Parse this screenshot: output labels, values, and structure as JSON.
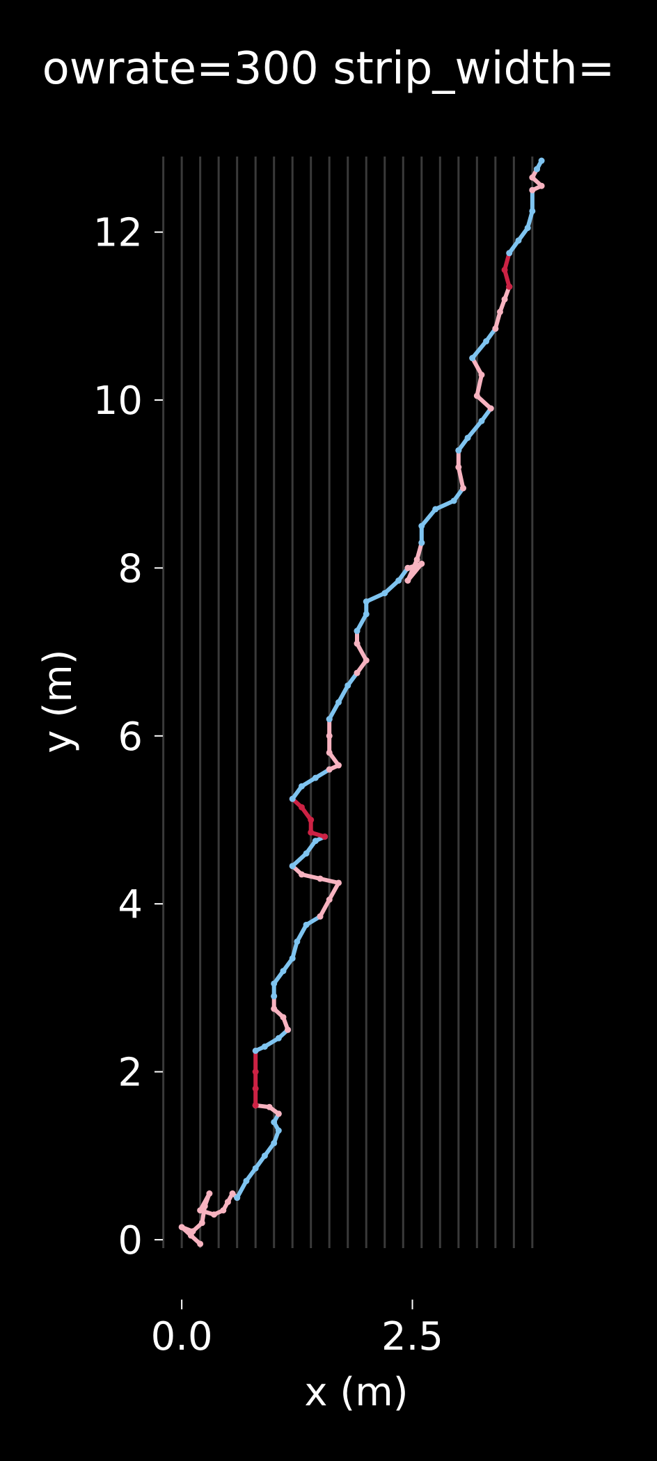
{
  "chart_data": {
    "type": "line",
    "title": "owrate=300 strip_width=",
    "xlabel": "x (m)",
    "ylabel": "y (m)",
    "xlim": [
      -0.25,
      4.05
    ],
    "ylim": [
      -0.1,
      12.9
    ],
    "xticks": [
      0.0,
      2.5
    ],
    "xtick_labels": [
      "0.0",
      "2.5"
    ],
    "yticks": [
      0,
      2,
      4,
      6,
      8,
      10,
      12
    ],
    "ytick_labels": [
      "0",
      "2",
      "4",
      "6",
      "8",
      "10",
      "12"
    ],
    "grid": false,
    "legend": "none",
    "strip_lines_x": [
      -0.2,
      0.0,
      0.2,
      0.4,
      0.6,
      0.8,
      1.0,
      1.2,
      1.4,
      1.6,
      1.8,
      2.0,
      2.2,
      2.4,
      2.6,
      2.8,
      3.0,
      3.2,
      3.4,
      3.6,
      3.8
    ],
    "colors": {
      "background": "#000000",
      "text": "#ffffff",
      "strip_line": "#3a3a3a",
      "path_blue": "#7fc4f0",
      "path_pink": "#f7b3c0",
      "path_red": "#cc2244"
    },
    "series": [
      {
        "color_key": "path_pink",
        "points": [
          [
            0.2,
            -0.05
          ],
          [
            0.1,
            0.05
          ],
          [
            0.0,
            0.15
          ],
          [
            0.12,
            0.1
          ],
          [
            0.22,
            0.2
          ],
          [
            0.25,
            0.4
          ],
          [
            0.3,
            0.55
          ],
          [
            0.2,
            0.35
          ],
          [
            0.35,
            0.3
          ],
          [
            0.45,
            0.35
          ],
          [
            0.5,
            0.45
          ],
          [
            0.55,
            0.55
          ],
          [
            0.6,
            0.5
          ]
        ]
      },
      {
        "color_key": "path_blue",
        "points": [
          [
            0.6,
            0.5
          ],
          [
            0.7,
            0.7
          ],
          [
            0.8,
            0.85
          ],
          [
            0.9,
            1.0
          ],
          [
            1.0,
            1.15
          ],
          [
            1.05,
            1.3
          ],
          [
            1.0,
            1.4
          ],
          [
            1.05,
            1.5
          ]
        ]
      },
      {
        "color_key": "path_pink",
        "points": [
          [
            1.05,
            1.5
          ],
          [
            0.95,
            1.58
          ],
          [
            0.8,
            1.6
          ]
        ]
      },
      {
        "color_key": "path_red",
        "points": [
          [
            0.8,
            1.6
          ],
          [
            0.8,
            1.8
          ],
          [
            0.8,
            2.0
          ],
          [
            0.8,
            2.25
          ]
        ]
      },
      {
        "color_key": "path_blue",
        "points": [
          [
            0.8,
            2.25
          ],
          [
            0.9,
            2.3
          ],
          [
            1.05,
            2.4
          ],
          [
            1.15,
            2.5
          ]
        ]
      },
      {
        "color_key": "path_pink",
        "points": [
          [
            1.15,
            2.5
          ],
          [
            1.1,
            2.65
          ],
          [
            1.0,
            2.75
          ],
          [
            1.0,
            2.9
          ]
        ]
      },
      {
        "color_key": "path_blue",
        "points": [
          [
            1.0,
            2.9
          ],
          [
            1.0,
            3.05
          ],
          [
            1.1,
            3.2
          ],
          [
            1.2,
            3.35
          ],
          [
            1.25,
            3.55
          ],
          [
            1.35,
            3.75
          ],
          [
            1.5,
            3.85
          ]
        ]
      },
      {
        "color_key": "path_pink",
        "points": [
          [
            1.5,
            3.85
          ],
          [
            1.6,
            4.05
          ],
          [
            1.7,
            4.25
          ],
          [
            1.5,
            4.3
          ],
          [
            1.3,
            4.35
          ],
          [
            1.2,
            4.45
          ]
        ]
      },
      {
        "color_key": "path_blue",
        "points": [
          [
            1.2,
            4.45
          ],
          [
            1.35,
            4.6
          ],
          [
            1.45,
            4.75
          ],
          [
            1.55,
            4.8
          ]
        ]
      },
      {
        "color_key": "path_red",
        "points": [
          [
            1.55,
            4.8
          ],
          [
            1.4,
            4.85
          ],
          [
            1.4,
            5.0
          ],
          [
            1.3,
            5.15
          ],
          [
            1.2,
            5.25
          ]
        ]
      },
      {
        "color_key": "path_blue",
        "points": [
          [
            1.2,
            5.25
          ],
          [
            1.3,
            5.4
          ],
          [
            1.45,
            5.5
          ],
          [
            1.6,
            5.6
          ]
        ]
      },
      {
        "color_key": "path_pink",
        "points": [
          [
            1.6,
            5.6
          ],
          [
            1.7,
            5.65
          ],
          [
            1.6,
            5.8
          ],
          [
            1.6,
            6.0
          ],
          [
            1.6,
            6.2
          ]
        ]
      },
      {
        "color_key": "path_blue",
        "points": [
          [
            1.6,
            6.2
          ],
          [
            1.7,
            6.4
          ],
          [
            1.8,
            6.6
          ],
          [
            1.9,
            6.75
          ]
        ]
      },
      {
        "color_key": "path_pink",
        "points": [
          [
            1.9,
            6.75
          ],
          [
            2.0,
            6.9
          ],
          [
            1.9,
            7.1
          ],
          [
            1.9,
            7.25
          ]
        ]
      },
      {
        "color_key": "path_blue",
        "points": [
          [
            1.9,
            7.25
          ],
          [
            2.0,
            7.45
          ],
          [
            2.0,
            7.6
          ],
          [
            2.2,
            7.7
          ],
          [
            2.35,
            7.85
          ],
          [
            2.45,
            8.0
          ]
        ]
      },
      {
        "color_key": "path_pink",
        "points": [
          [
            2.45,
            8.0
          ],
          [
            2.6,
            8.05
          ],
          [
            2.45,
            7.85
          ],
          [
            2.55,
            8.1
          ],
          [
            2.6,
            8.3
          ]
        ]
      },
      {
        "color_key": "path_blue",
        "points": [
          [
            2.6,
            8.3
          ],
          [
            2.6,
            8.5
          ],
          [
            2.75,
            8.7
          ],
          [
            2.95,
            8.8
          ],
          [
            3.05,
            8.95
          ]
        ]
      },
      {
        "color_key": "path_pink",
        "points": [
          [
            3.05,
            8.95
          ],
          [
            3.0,
            9.2
          ],
          [
            3.0,
            9.4
          ]
        ]
      },
      {
        "color_key": "path_blue",
        "points": [
          [
            3.0,
            9.4
          ],
          [
            3.1,
            9.55
          ],
          [
            3.25,
            9.75
          ],
          [
            3.35,
            9.9
          ]
        ]
      },
      {
        "color_key": "path_pink",
        "points": [
          [
            3.35,
            9.9
          ],
          [
            3.2,
            10.05
          ],
          [
            3.25,
            10.3
          ],
          [
            3.15,
            10.5
          ]
        ]
      },
      {
        "color_key": "path_blue",
        "points": [
          [
            3.15,
            10.5
          ],
          [
            3.3,
            10.7
          ],
          [
            3.4,
            10.85
          ]
        ]
      },
      {
        "color_key": "path_pink",
        "points": [
          [
            3.4,
            10.85
          ],
          [
            3.45,
            11.05
          ],
          [
            3.5,
            11.2
          ],
          [
            3.55,
            11.35
          ]
        ]
      },
      {
        "color_key": "path_red",
        "points": [
          [
            3.55,
            11.35
          ],
          [
            3.5,
            11.55
          ],
          [
            3.55,
            11.75
          ]
        ]
      },
      {
        "color_key": "path_blue",
        "points": [
          [
            3.55,
            11.75
          ],
          [
            3.65,
            11.9
          ],
          [
            3.75,
            12.05
          ],
          [
            3.8,
            12.25
          ],
          [
            3.8,
            12.5
          ]
        ]
      },
      {
        "color_key": "path_pink",
        "points": [
          [
            3.8,
            12.5
          ],
          [
            3.9,
            12.55
          ],
          [
            3.8,
            12.65
          ],
          [
            3.85,
            12.75
          ]
        ]
      },
      {
        "color_key": "path_blue",
        "points": [
          [
            3.85,
            12.75
          ],
          [
            3.9,
            12.85
          ]
        ]
      }
    ]
  }
}
